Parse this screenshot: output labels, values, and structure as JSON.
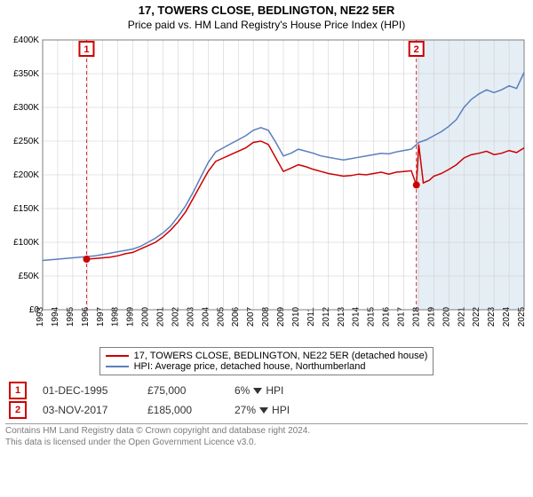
{
  "titles": {
    "main": "17, TOWERS CLOSE, BEDLINGTON, NE22 5ER",
    "sub": "Price paid vs. HM Land Registry's House Price Index (HPI)"
  },
  "chart": {
    "type": "line",
    "background_color": "#ffffff",
    "plot_bg_color": "#ffffff",
    "future_band_color": "#e6eef5",
    "grid_color": "#c9c9c9",
    "axis_color": "#7f7f7f",
    "axis_fontsize": 10,
    "title_fontsize": 13,
    "line_width": 1.5,
    "xlim": [
      1993,
      2025
    ],
    "ylim": [
      0,
      400000
    ],
    "ytick_step": 50000,
    "yticks": [
      0,
      50000,
      100000,
      150000,
      200000,
      250000,
      300000,
      350000,
      400000
    ],
    "ytick_labels": [
      "£0",
      "£50K",
      "£100K",
      "£150K",
      "£200K",
      "£250K",
      "£300K",
      "£350K",
      "£400K"
    ],
    "xticks": [
      1993,
      1994,
      1995,
      1996,
      1997,
      1998,
      1999,
      2000,
      2001,
      2002,
      2003,
      2004,
      2005,
      2006,
      2007,
      2008,
      2009,
      2010,
      2011,
      2012,
      2013,
      2014,
      2015,
      2016,
      2017,
      2018,
      2019,
      2020,
      2021,
      2022,
      2023,
      2024,
      2025
    ],
    "series": [
      {
        "name": "price_paid",
        "label": "17, TOWERS CLOSE, BEDLINGTON, NE22 5ER (detached house)",
        "color": "#cc0000",
        "points": [
          [
            1995.92,
            75000
          ],
          [
            1996.5,
            76000
          ],
          [
            1997.0,
            77000
          ],
          [
            1997.5,
            78000
          ],
          [
            1998.0,
            80000
          ],
          [
            1998.5,
            83000
          ],
          [
            1999.0,
            85000
          ],
          [
            1999.5,
            90000
          ],
          [
            2000.0,
            95000
          ],
          [
            2000.5,
            100000
          ],
          [
            2001.0,
            108000
          ],
          [
            2001.5,
            118000
          ],
          [
            2002.0,
            130000
          ],
          [
            2002.5,
            145000
          ],
          [
            2003.0,
            165000
          ],
          [
            2003.5,
            185000
          ],
          [
            2004.0,
            205000
          ],
          [
            2004.5,
            220000
          ],
          [
            2005.0,
            225000
          ],
          [
            2005.5,
            230000
          ],
          [
            2006.0,
            235000
          ],
          [
            2006.5,
            240000
          ],
          [
            2007.0,
            248000
          ],
          [
            2007.5,
            250000
          ],
          [
            2008.0,
            245000
          ],
          [
            2008.5,
            225000
          ],
          [
            2009.0,
            205000
          ],
          [
            2009.5,
            210000
          ],
          [
            2010.0,
            215000
          ],
          [
            2010.5,
            212000
          ],
          [
            2011.0,
            208000
          ],
          [
            2011.5,
            205000
          ],
          [
            2012.0,
            202000
          ],
          [
            2012.5,
            200000
          ],
          [
            2013.0,
            198000
          ],
          [
            2013.5,
            199000
          ],
          [
            2014.0,
            201000
          ],
          [
            2014.5,
            200000
          ],
          [
            2015.0,
            202000
          ],
          [
            2015.5,
            204000
          ],
          [
            2016.0,
            201000
          ],
          [
            2016.5,
            204000
          ],
          [
            2017.0,
            205000
          ],
          [
            2017.5,
            206000
          ],
          [
            2017.84,
            185000
          ],
          [
            2018.0,
            245000
          ],
          [
            2018.3,
            188000
          ],
          [
            2018.7,
            192000
          ],
          [
            2019.0,
            198000
          ],
          [
            2019.5,
            202000
          ],
          [
            2020.0,
            208000
          ],
          [
            2020.5,
            215000
          ],
          [
            2021.0,
            225000
          ],
          [
            2021.5,
            230000
          ],
          [
            2022.0,
            232000
          ],
          [
            2022.5,
            235000
          ],
          [
            2023.0,
            230000
          ],
          [
            2023.5,
            232000
          ],
          [
            2024.0,
            236000
          ],
          [
            2024.5,
            233000
          ],
          [
            2025.0,
            240000
          ]
        ]
      },
      {
        "name": "hpi",
        "label": "HPI: Average price, detached house, Northumberland",
        "color": "#5b7fbd",
        "points": [
          [
            1993.0,
            73000
          ],
          [
            1993.5,
            74000
          ],
          [
            1994.0,
            75000
          ],
          [
            1994.5,
            76000
          ],
          [
            1995.0,
            77000
          ],
          [
            1995.5,
            78000
          ],
          [
            1996.0,
            79000
          ],
          [
            1996.5,
            80000
          ],
          [
            1997.0,
            82000
          ],
          [
            1997.5,
            84000
          ],
          [
            1998.0,
            86000
          ],
          [
            1998.5,
            88000
          ],
          [
            1999.0,
            90000
          ],
          [
            1999.5,
            94000
          ],
          [
            2000.0,
            100000
          ],
          [
            2000.5,
            106000
          ],
          [
            2001.0,
            114000
          ],
          [
            2001.5,
            124000
          ],
          [
            2002.0,
            138000
          ],
          [
            2002.5,
            154000
          ],
          [
            2003.0,
            174000
          ],
          [
            2003.5,
            196000
          ],
          [
            2004.0,
            218000
          ],
          [
            2004.5,
            234000
          ],
          [
            2005.0,
            240000
          ],
          [
            2005.5,
            246000
          ],
          [
            2006.0,
            252000
          ],
          [
            2006.5,
            258000
          ],
          [
            2007.0,
            266000
          ],
          [
            2007.5,
            270000
          ],
          [
            2008.0,
            266000
          ],
          [
            2008.5,
            248000
          ],
          [
            2009.0,
            228000
          ],
          [
            2009.5,
            232000
          ],
          [
            2010.0,
            238000
          ],
          [
            2010.5,
            235000
          ],
          [
            2011.0,
            232000
          ],
          [
            2011.5,
            228000
          ],
          [
            2012.0,
            226000
          ],
          [
            2012.5,
            224000
          ],
          [
            2013.0,
            222000
          ],
          [
            2013.5,
            224000
          ],
          [
            2014.0,
            226000
          ],
          [
            2014.5,
            228000
          ],
          [
            2015.0,
            230000
          ],
          [
            2015.5,
            232000
          ],
          [
            2016.0,
            231000
          ],
          [
            2016.5,
            234000
          ],
          [
            2017.0,
            236000
          ],
          [
            2017.5,
            238000
          ],
          [
            2018.0,
            248000
          ],
          [
            2018.5,
            252000
          ],
          [
            2019.0,
            258000
          ],
          [
            2019.5,
            264000
          ],
          [
            2020.0,
            272000
          ],
          [
            2020.5,
            282000
          ],
          [
            2021.0,
            300000
          ],
          [
            2021.5,
            312000
          ],
          [
            2022.0,
            320000
          ],
          [
            2022.5,
            326000
          ],
          [
            2023.0,
            322000
          ],
          [
            2023.5,
            326000
          ],
          [
            2024.0,
            332000
          ],
          [
            2024.5,
            328000
          ],
          [
            2025.0,
            352000
          ]
        ]
      }
    ],
    "sale_markers": [
      {
        "n": "1",
        "x": 1995.92,
        "y": 75000
      },
      {
        "n": "2",
        "x": 2017.84,
        "y": 185000
      }
    ],
    "vlines": [
      {
        "x": 1995.92,
        "color": "#cc0000",
        "dash": "4,3",
        "width": 0.8
      },
      {
        "x": 2017.84,
        "color": "#cc0000",
        "dash": "4,3",
        "width": 0.8
      }
    ],
    "marker_box": {
      "border_color": "#cc0000",
      "text_color": "#cc0000",
      "size": 16,
      "border_width": 2
    },
    "sale_dot": {
      "color": "#cc0000",
      "radius": 4
    }
  },
  "legend": {
    "border_color": "#7f7f7f",
    "fontsize": 11,
    "items": [
      {
        "color": "#cc0000",
        "label": "17, TOWERS CLOSE, BEDLINGTON, NE22 5ER (detached house)"
      },
      {
        "color": "#5b7fbd",
        "label": "HPI: Average price, detached house, Northumberland"
      }
    ]
  },
  "sales": [
    {
      "n": "1",
      "date": "01-DEC-1995",
      "price": "£75,000",
      "delta": "6%",
      "direction": "down",
      "vs": "HPI"
    },
    {
      "n": "2",
      "date": "03-NOV-2017",
      "price": "£185,000",
      "delta": "27%",
      "direction": "down",
      "vs": "HPI"
    }
  ],
  "footer": {
    "line1": "Contains HM Land Registry data © Crown copyright and database right 2024.",
    "line2": "This data is licensed under the Open Government Licence v3.0."
  }
}
